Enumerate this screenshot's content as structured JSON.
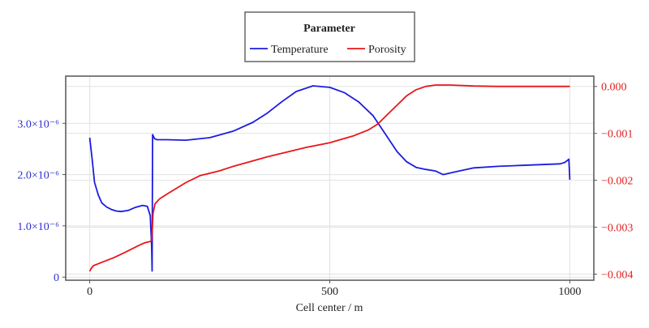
{
  "chart_data": {
    "type": "line",
    "title": "",
    "xlabel": "Cell center / m",
    "ylabel_left": "",
    "ylabel_right": "",
    "xlim": [
      -50,
      1050
    ],
    "ylim_left": [
      -6e-08,
      3.92e-06
    ],
    "ylim_right": [
      -0.00413,
      0.00022
    ],
    "x_ticks": [
      0,
      500,
      1000
    ],
    "x_tick_labels": [
      "0",
      "500",
      "1000"
    ],
    "y_left_ticks": [
      0,
      1e-06,
      2e-06,
      3e-06
    ],
    "y_left_tick_labels": [
      "0",
      "1.0×10⁻⁶",
      "2.0×10⁻⁶",
      "3.0×10⁻⁶"
    ],
    "y_right_ticks": [
      0,
      -0.001,
      -0.002,
      -0.003,
      -0.004
    ],
    "y_right_tick_labels": [
      "0.000",
      "−0.001",
      "−0.002",
      "−0.003",
      "−0.004"
    ],
    "grid": true,
    "legend": {
      "title": "Parameter",
      "placement": "top-center, outside"
    },
    "series": [
      {
        "name": "Temperature",
        "axis": "left",
        "color": "#1c1ce0",
        "x": [
          0,
          5,
          10,
          18,
          25,
          35,
          45,
          55,
          65,
          80,
          95,
          110,
          120,
          126,
          129,
          130,
          131,
          135,
          140,
          160,
          200,
          250,
          300,
          340,
          370,
          400,
          430,
          465,
          500,
          530,
          560,
          590,
          615,
          640,
          660,
          680,
          700,
          720,
          736,
          760,
          800,
          850,
          900,
          980,
          990,
          998,
          1000
        ],
        "y": [
          2.72e-06,
          2.3e-06,
          1.85e-06,
          1.6e-06,
          1.45e-06,
          1.37e-06,
          1.32e-06,
          1.29e-06,
          1.28e-06,
          1.3e-06,
          1.36e-06,
          1.4e-06,
          1.38e-06,
          1.2e-06,
          6e-07,
          1.2e-07,
          2.78e-06,
          2.7e-06,
          2.68e-06,
          2.68e-06,
          2.67e-06,
          2.72e-06,
          2.85e-06,
          3.02e-06,
          3.2e-06,
          3.42e-06,
          3.62e-06,
          3.73e-06,
          3.7e-06,
          3.6e-06,
          3.42e-06,
          3.15e-06,
          2.8e-06,
          2.45e-06,
          2.25e-06,
          2.14e-06,
          2.1e-06,
          2.07e-06,
          2e-06,
          2.05e-06,
          2.13e-06,
          2.16e-06,
          2.18e-06,
          2.21e-06,
          2.24e-06,
          2.3e-06,
          1.9e-06
        ]
      },
      {
        "name": "Porosity",
        "axis": "right",
        "color": "#e8161b",
        "x": [
          0,
          3,
          8,
          15,
          30,
          50,
          75,
          100,
          115,
          128,
          130,
          132,
          136,
          145,
          160,
          200,
          230,
          270,
          300,
          370,
          450,
          500,
          550,
          580,
          600,
          620,
          640,
          660,
          680,
          700,
          720,
          750,
          800,
          850,
          900,
          1000
        ],
        "y": [
          -0.00394,
          -0.00388,
          -0.00382,
          -0.00379,
          -0.00373,
          -0.00365,
          -0.00353,
          -0.0034,
          -0.00333,
          -0.0033,
          -0.0031,
          -0.0027,
          -0.0025,
          -0.0024,
          -0.0023,
          -0.00205,
          -0.0019,
          -0.0018,
          -0.0017,
          -0.0015,
          -0.0013,
          -0.0012,
          -0.00105,
          -0.00093,
          -0.0008,
          -0.0006,
          -0.0004,
          -0.0002,
          -7e-05,
          0.0,
          3e-05,
          3e-05,
          1e-05,
          0.0,
          0.0,
          0.0
        ]
      }
    ]
  }
}
